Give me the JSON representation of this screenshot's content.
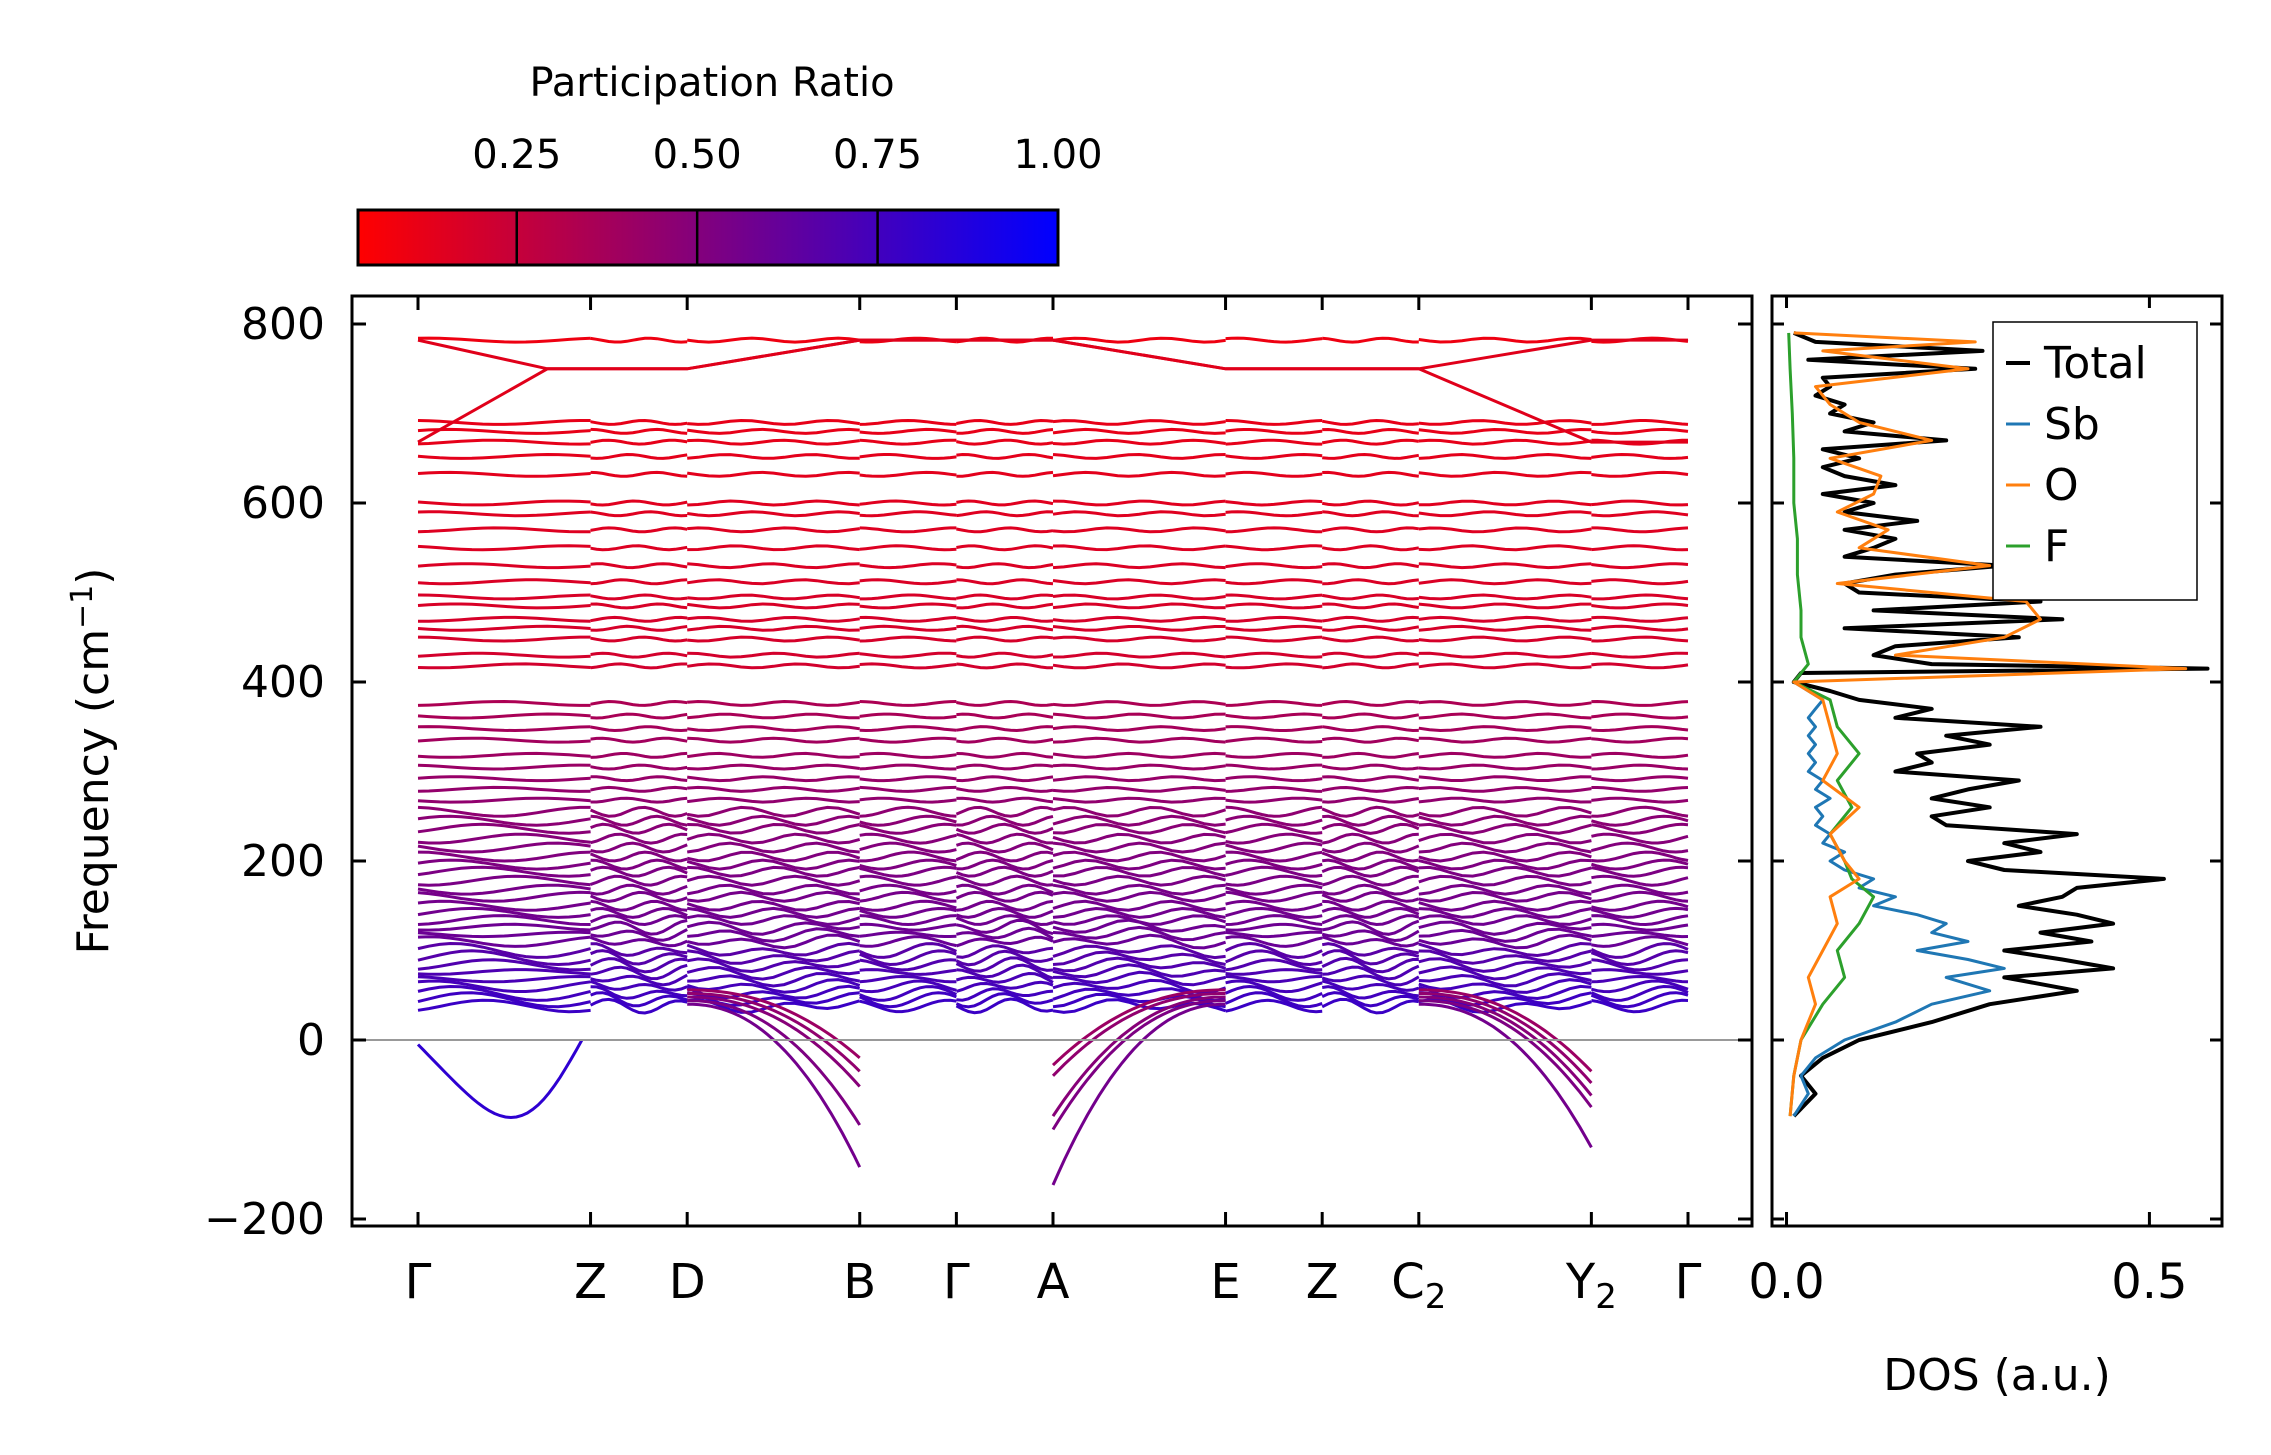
{
  "colorbar": {
    "label": "Participation Ratio",
    "ticks": [
      0.25,
      0.5,
      0.75,
      1.0
    ],
    "tick_labels": [
      "0.25",
      "0.50",
      "0.75",
      "1.00"
    ],
    "range": [
      0.03,
      1.0
    ],
    "colors": [
      "#ff0000",
      "#0000ff"
    ]
  },
  "chart_data": [
    {
      "type": "line",
      "title": "",
      "ylabel": "Frequency (cm",
      "ylabel_sup": "−1",
      "ylabel_tail": ")",
      "ylim": [
        -205,
        835
      ],
      "yticks": [
        -200,
        0,
        200,
        400,
        600,
        800
      ],
      "ytick_labels": [
        "−200",
        "0",
        "200",
        "400",
        "600",
        "800"
      ],
      "kpath": [
        {
          "main": "Γ",
          "sub": ""
        },
        {
          "main": "Z",
          "sub": ""
        },
        {
          "main": "D",
          "sub": ""
        },
        {
          "main": "B",
          "sub": ""
        },
        {
          "main": "Γ",
          "sub": ""
        },
        {
          "main": "A",
          "sub": ""
        },
        {
          "main": "E",
          "sub": ""
        },
        {
          "main": "Z",
          "sub": ""
        },
        {
          "main": "C",
          "sub": "2"
        },
        {
          "main": "Y",
          "sub": "2"
        },
        {
          "main": "Γ",
          "sub": ""
        }
      ],
      "kpath_distance": [
        0,
        1.0,
        1.56,
        2.56,
        3.12,
        3.68,
        4.68,
        5.24,
        5.8,
        6.8,
        7.36
      ],
      "path_breaks_after": [
        3,
        5,
        9
      ],
      "zero_line": 0,
      "flat_bands_cm1": [
        782,
        690,
        680,
        668,
        652,
        632,
        600,
        588,
        570,
        550,
        530,
        512,
        495,
        485,
        470,
        460,
        448,
        430,
        418,
        376,
        362,
        348,
        335,
        318,
        305,
        292,
        280,
        268,
        255,
        245,
        236,
        225,
        215,
        205,
        196,
        188,
        178,
        168,
        160,
        150,
        142,
        134,
        126,
        118,
        110,
        100,
        92,
        84,
        76,
        68,
        60,
        52,
        45,
        38
      ],
      "zone_boundary_bands": [
        {
          "gamma": 782,
          "mid": 750
        },
        {
          "gamma": 668,
          "mid": 750
        }
      ],
      "soft_modes": [
        {
          "segment": "Gamma-Z",
          "min_cm1": -82,
          "k_min": 0.6
        },
        {
          "segment": "D-B",
          "end_cm1": [
            -142,
            -95,
            -52,
            -35,
            -20
          ]
        },
        {
          "segment": "A-E",
          "start_cm1": [
            -162,
            -100,
            -85,
            -40,
            -28
          ]
        },
        {
          "segment": "C2-Y2",
          "end_cm1": [
            -120,
            -75,
            -62,
            -48,
            -35
          ]
        }
      ]
    },
    {
      "type": "line",
      "xlabel": "DOS (a.u.)",
      "xlim": [
        -0.02,
        0.6
      ],
      "xticks": [
        0.0,
        0.5
      ],
      "xtick_labels": [
        "0.0",
        "0.5"
      ],
      "ylim": [
        -205,
        835
      ],
      "legend_position": "top-right",
      "series": [
        {
          "name": "Total",
          "color": "#000000",
          "y": [
            -85,
            -60,
            -40,
            -20,
            0,
            20,
            40,
            55,
            70,
            80,
            90,
            100,
            110,
            120,
            130,
            140,
            150,
            160,
            170,
            180,
            190,
            200,
            210,
            220,
            230,
            240,
            250,
            260,
            270,
            280,
            290,
            300,
            310,
            320,
            330,
            340,
            350,
            360,
            370,
            380,
            390,
            400,
            410,
            415,
            420,
            430,
            440,
            450,
            460,
            470,
            480,
            490,
            500,
            510,
            520,
            530,
            540,
            550,
            560,
            570,
            580,
            590,
            600,
            610,
            620,
            630,
            640,
            650,
            660,
            670,
            680,
            690,
            700,
            710,
            720,
            730,
            740,
            750,
            760,
            770,
            780,
            790
          ],
          "x": [
            0.01,
            0.04,
            0.02,
            0.05,
            0.1,
            0.2,
            0.28,
            0.4,
            0.3,
            0.45,
            0.38,
            0.3,
            0.42,
            0.35,
            0.45,
            0.4,
            0.32,
            0.38,
            0.4,
            0.52,
            0.3,
            0.25,
            0.35,
            0.3,
            0.4,
            0.22,
            0.2,
            0.28,
            0.2,
            0.25,
            0.32,
            0.15,
            0.2,
            0.18,
            0.28,
            0.22,
            0.35,
            0.15,
            0.2,
            0.1,
            0.06,
            0.01,
            0.02,
            0.58,
            0.2,
            0.12,
            0.15,
            0.32,
            0.08,
            0.38,
            0.12,
            0.35,
            0.1,
            0.08,
            0.15,
            0.3,
            0.08,
            0.12,
            0.15,
            0.08,
            0.18,
            0.08,
            0.12,
            0.05,
            0.15,
            0.08,
            0.05,
            0.1,
            0.05,
            0.22,
            0.08,
            0.12,
            0.06,
            0.08,
            0.04,
            0.06,
            0.05,
            0.26,
            0.03,
            0.27,
            0.04,
            0.01
          ]
        },
        {
          "name": "Sb",
          "color": "#1f77b4",
          "y": [
            -85,
            -60,
            -40,
            -20,
            0,
            20,
            40,
            55,
            70,
            80,
            90,
            100,
            110,
            120,
            130,
            140,
            150,
            160,
            170,
            180,
            190,
            200,
            210,
            220,
            230,
            240,
            250,
            260,
            270,
            280,
            290,
            300,
            310,
            320,
            330,
            340,
            350,
            360,
            370,
            380,
            390,
            400
          ],
          "x": [
            0.01,
            0.03,
            0.02,
            0.04,
            0.08,
            0.15,
            0.2,
            0.28,
            0.22,
            0.3,
            0.25,
            0.18,
            0.25,
            0.2,
            0.22,
            0.18,
            0.12,
            0.15,
            0.1,
            0.12,
            0.08,
            0.06,
            0.08,
            0.05,
            0.06,
            0.04,
            0.05,
            0.04,
            0.06,
            0.04,
            0.05,
            0.03,
            0.04,
            0.03,
            0.04,
            0.03,
            0.04,
            0.03,
            0.04,
            0.05,
            0.03,
            0.01
          ]
        },
        {
          "name": "O",
          "color": "#ff7f0e",
          "y": [
            -85,
            -40,
            0,
            40,
            70,
            100,
            130,
            160,
            180,
            200,
            230,
            260,
            290,
            320,
            350,
            380,
            400,
            415,
            430,
            450,
            470,
            490,
            510,
            530,
            550,
            570,
            590,
            610,
            630,
            650,
            670,
            690,
            710,
            730,
            750,
            770,
            780,
            790
          ],
          "x": [
            0.005,
            0.01,
            0.02,
            0.04,
            0.03,
            0.05,
            0.07,
            0.06,
            0.1,
            0.08,
            0.06,
            0.1,
            0.05,
            0.07,
            0.06,
            0.05,
            0.01,
            0.55,
            0.15,
            0.3,
            0.35,
            0.33,
            0.07,
            0.28,
            0.1,
            0.14,
            0.07,
            0.12,
            0.13,
            0.06,
            0.2,
            0.1,
            0.06,
            0.04,
            0.25,
            0.05,
            0.26,
            0.01
          ]
        },
        {
          "name": "F",
          "color": "#2ca02c",
          "y": [
            -85,
            -40,
            0,
            40,
            70,
            100,
            130,
            160,
            180,
            200,
            230,
            260,
            290,
            320,
            350,
            380,
            400,
            420,
            450,
            480,
            520,
            560,
            600,
            650,
            700,
            750,
            790
          ],
          "x": [
            0.005,
            0.01,
            0.02,
            0.05,
            0.08,
            0.07,
            0.1,
            0.12,
            0.09,
            0.08,
            0.06,
            0.09,
            0.07,
            0.1,
            0.07,
            0.06,
            0.01,
            0.03,
            0.02,
            0.02,
            0.015,
            0.015,
            0.01,
            0.01,
            0.008,
            0.005,
            0.003
          ]
        }
      ]
    }
  ]
}
